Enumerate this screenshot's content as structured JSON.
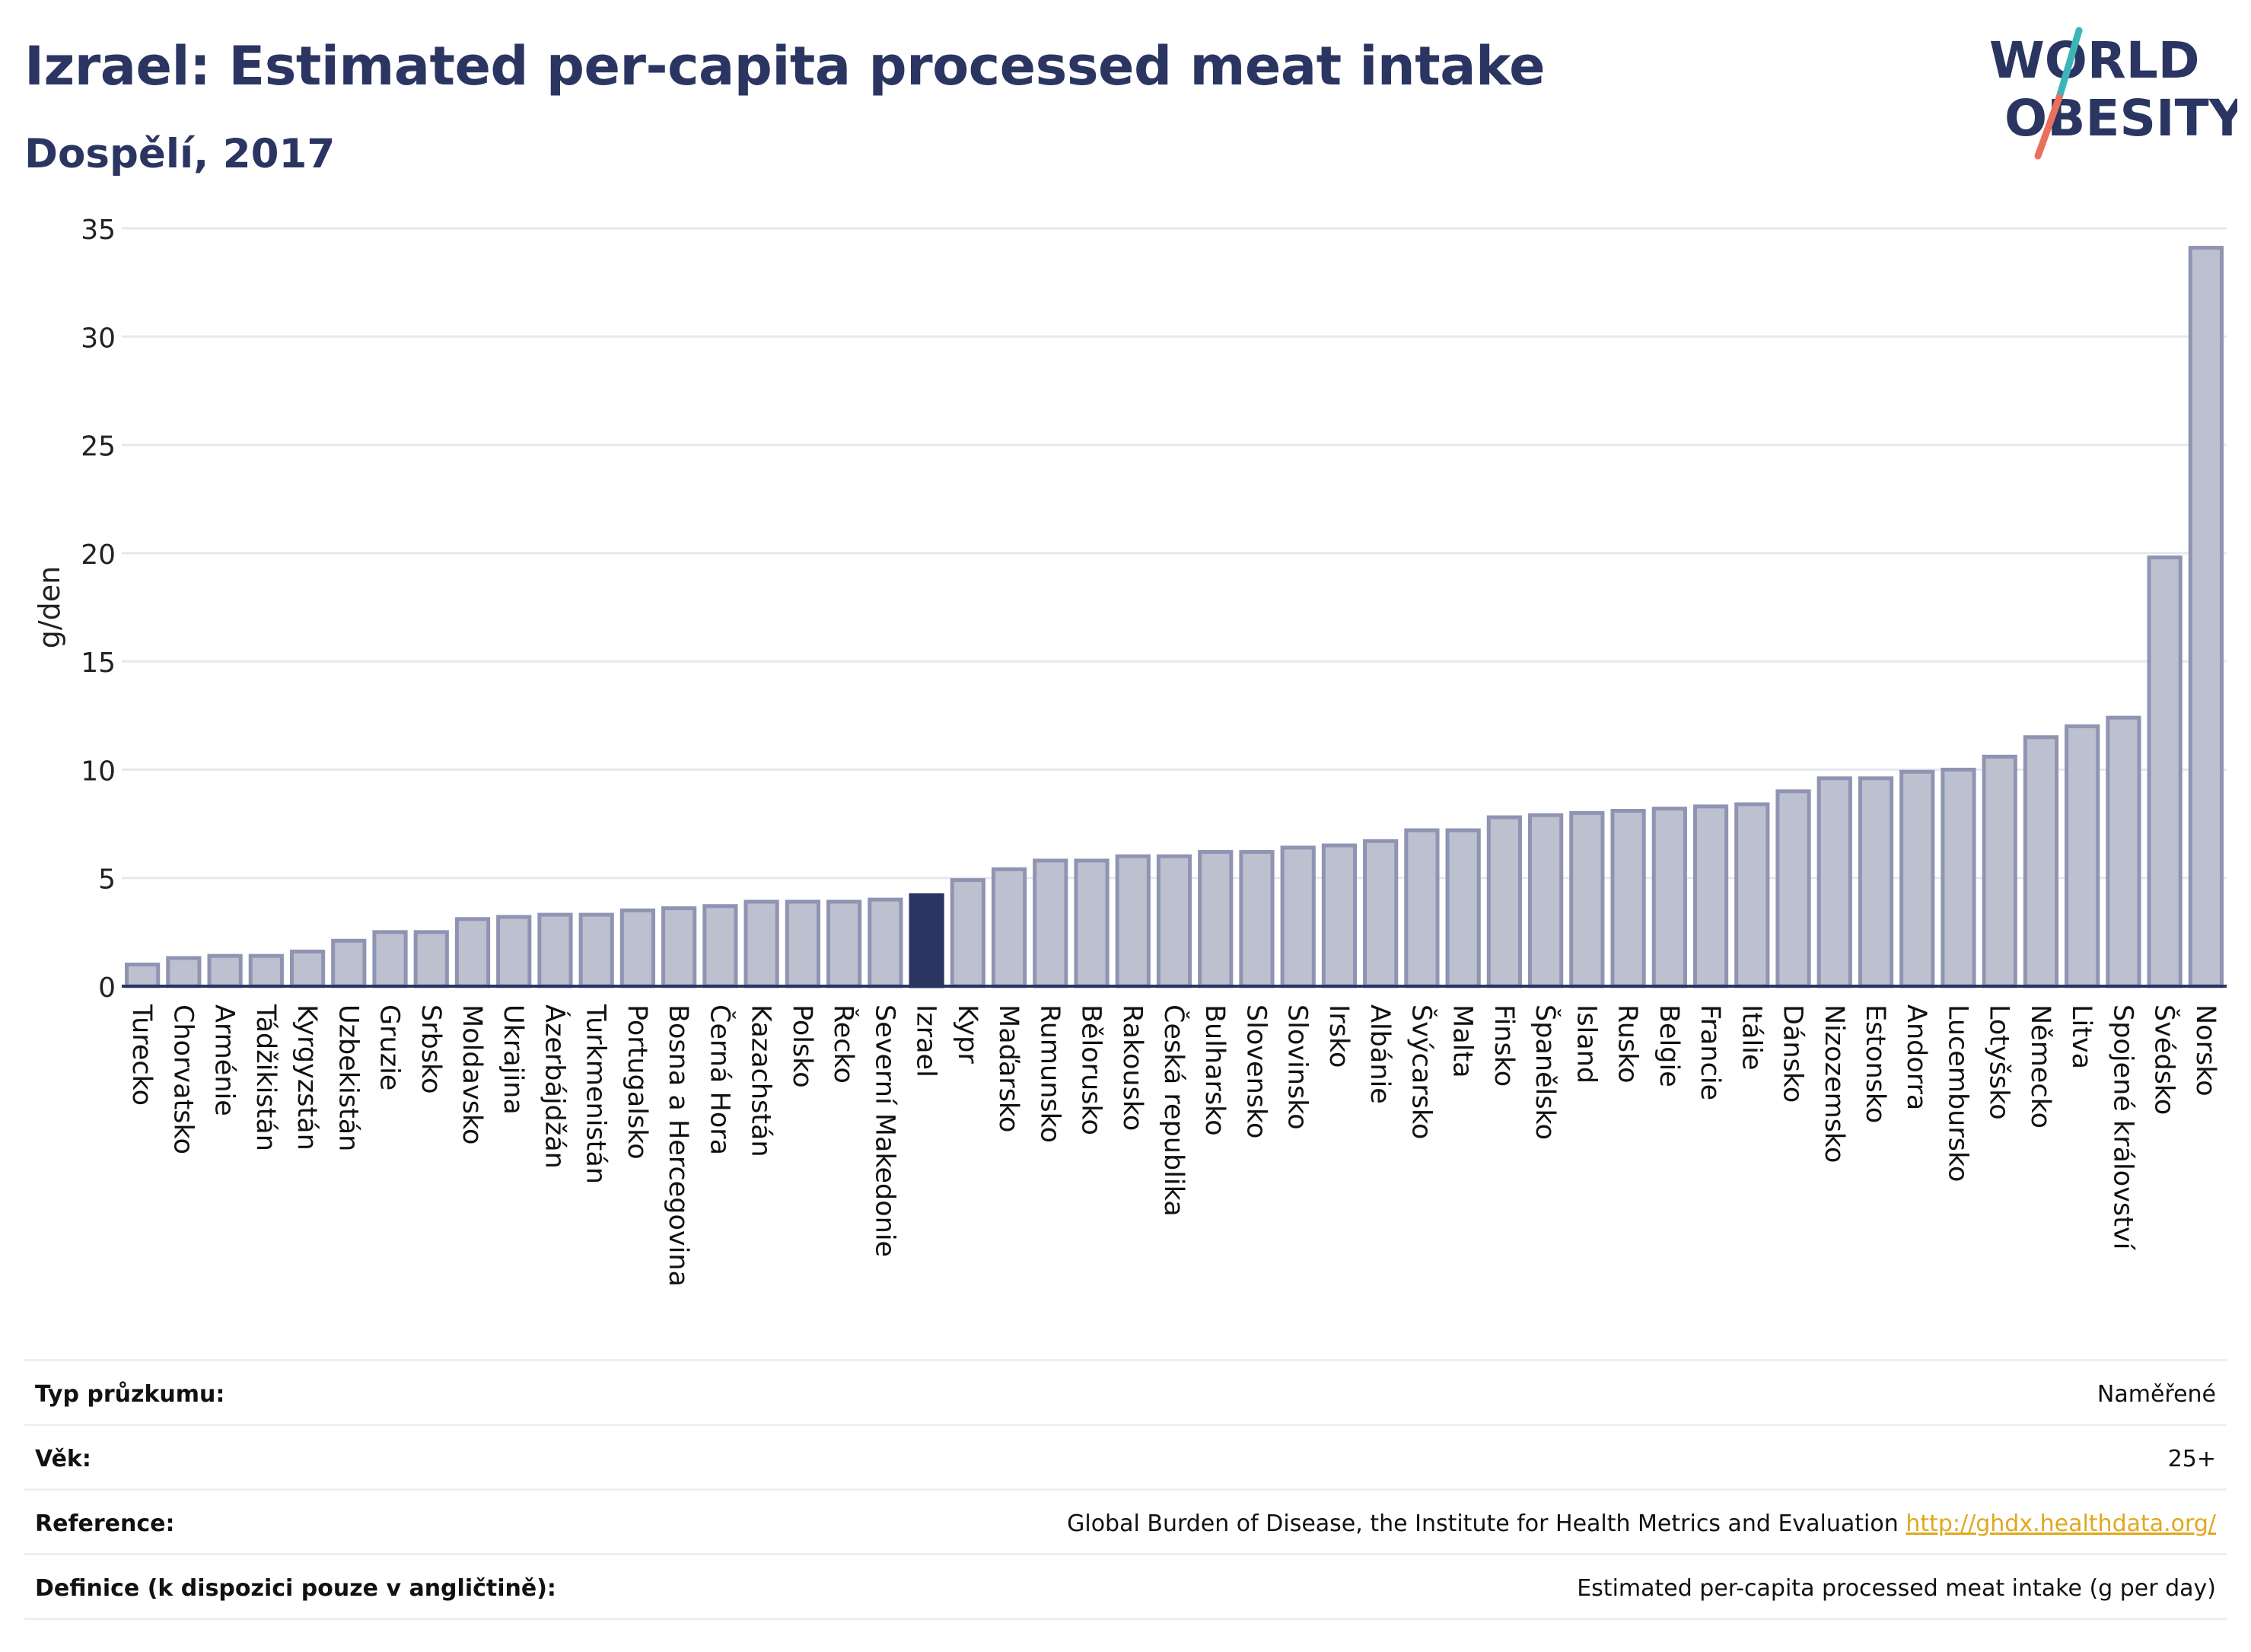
{
  "header": {
    "title": "Izrael: Estimated per-capita processed meat intake",
    "subtitle": "Dospělí, 2017"
  },
  "logo": {
    "line1": "WORLD",
    "line2": "OBESITY",
    "name": "world-obesity-logo"
  },
  "chart_data": {
    "type": "bar",
    "ylabel": "g/den",
    "ylim": [
      0,
      35
    ],
    "yticks": [
      0,
      5,
      10,
      15,
      20,
      25,
      30,
      35
    ],
    "grid": true,
    "highlight": "Izrael",
    "colors": {
      "bar": "#bcc0cf",
      "bar_border": "#8f94b3",
      "highlight": "#2b3562",
      "grid": "#e6e8ee",
      "axis": "#2b3562"
    },
    "categories": [
      "Turecko",
      "Chorvatsko",
      "Arménie",
      "Tádžikistán",
      "Kyrgyzstán",
      "Uzbekistán",
      "Gruzie",
      "Srbsko",
      "Moldavsko",
      "Ukrajina",
      "Ázerbájdžán",
      "Turkmenistán",
      "Portugalsko",
      "Bosna a Hercegovina",
      "Černá Hora",
      "Kazachstán",
      "Polsko",
      "Řecko",
      "Severní Makedonie",
      "Izrael",
      "Kypr",
      "Maďarsko",
      "Rumunsko",
      "Bělorusko",
      "Rakousko",
      "Česká republika",
      "Bulharsko",
      "Slovensko",
      "Slovinsko",
      "Irsko",
      "Albánie",
      "Švýcarsko",
      "Malta",
      "Finsko",
      "Španělsko",
      "Island",
      "Rusko",
      "Belgie",
      "Francie",
      "Itálie",
      "Dánsko",
      "Nizozemsko",
      "Estonsko",
      "Andorra",
      "Lucembursko",
      "Lotyšsko",
      "Německo",
      "Litva",
      "Spojené království",
      "Švédsko",
      "Norsko"
    ],
    "values": [
      1.0,
      1.3,
      1.4,
      1.4,
      1.6,
      2.1,
      2.5,
      2.5,
      3.1,
      3.2,
      3.3,
      3.3,
      3.5,
      3.6,
      3.7,
      3.9,
      3.9,
      3.9,
      4.0,
      4.2,
      4.9,
      5.4,
      5.8,
      5.8,
      6.0,
      6.0,
      6.2,
      6.2,
      6.4,
      6.5,
      6.7,
      7.2,
      7.2,
      7.8,
      7.9,
      8.0,
      8.1,
      8.2,
      8.3,
      8.4,
      9.0,
      9.6,
      9.6,
      9.9,
      10.0,
      10.6,
      11.5,
      12.0,
      12.4,
      19.8,
      34.1
    ]
  },
  "info": [
    {
      "label": "Typ průzkumu:",
      "value": "Naměřené",
      "link": ""
    },
    {
      "label": "Věk:",
      "value": "25+",
      "link": ""
    },
    {
      "label": "Reference:",
      "value": "Global Burden of Disease, the Institute for Health Metrics and Evaluation",
      "link": "http://ghdx.healthdata.org/"
    },
    {
      "label": "Definice (k dispozici pouze v angličtině):",
      "value": "Estimated per-capita processed meat intake (g per day)",
      "link": ""
    }
  ]
}
